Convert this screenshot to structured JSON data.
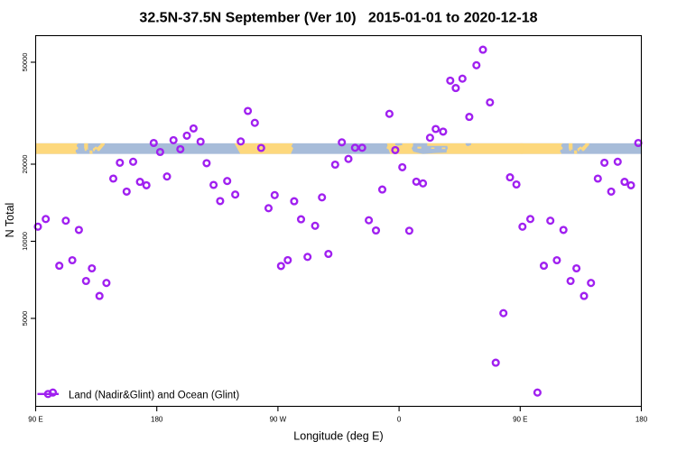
{
  "title": "32.5N-37.5N September (Ver 10)   2015-01-01 to 2020-12-18",
  "colors": {
    "marker": "#A020F0",
    "land": "#FDD87D",
    "ocean": "#A7BCD9",
    "axis": "#000000",
    "background": "#FFFFFF",
    "text": "#000000"
  },
  "chart_data": {
    "type": "scatter",
    "title": "32.5N-37.5N September (Ver 10)   2015-01-01 to 2020-12-18",
    "xlabel": "Longitude (deg E)",
    "ylabel": "N Total",
    "x_axis": {
      "range": [
        90,
        540
      ],
      "ticks": [
        90,
        180,
        270,
        360,
        450,
        540
      ],
      "tick_labels": [
        "90 E",
        "180",
        "90 W",
        "0",
        "90 E",
        "180"
      ],
      "note": "longitude axis spans 450 deg; data with lon 90E-180E is plotted twice (at lon and lon+360)"
    },
    "y_axis": {
      "scale": "log",
      "range": [
        2268,
        63500
      ],
      "ticks": [
        5000,
        10000,
        20000,
        50000
      ],
      "tick_labels": [
        "5000",
        "10000",
        "20000",
        "50000"
      ]
    },
    "grid": false,
    "legend": {
      "label": "Land (Nadir&Glint) and Ocean (Glint)",
      "position": "bottomleft",
      "marker": "open-circle-on-line"
    },
    "series": [
      {
        "name": "N Total per longitude",
        "marker": "open-circle",
        "color": "#A020F0",
        "points": [
          {
            "lon": 97.5,
            "n": 12217
          },
          {
            "lon": 91.7,
            "n": 11404
          },
          {
            "lon": 112.4,
            "n": 12030
          },
          {
            "lon": 122.1,
            "n": 11076
          },
          {
            "lon": 107.6,
            "n": 8027
          },
          {
            "lon": 117.2,
            "n": 8434
          },
          {
            "lon": 131.8,
            "n": 7841
          },
          {
            "lon": 127.4,
            "n": 7000
          },
          {
            "lon": 142.6,
            "n": 6876
          },
          {
            "lon": 137.4,
            "n": 6118
          },
          {
            "lon": 152.6,
            "n": 20262
          },
          {
            "lon": 162.4,
            "n": 20444
          },
          {
            "lon": 147.7,
            "n": 17568
          },
          {
            "lon": 167.5,
            "n": 17062
          },
          {
            "lon": 172.3,
            "n": 16545
          },
          {
            "lon": 177.7,
            "n": 24199
          },
          {
            "lon": 157.6,
            "n": 15632
          },
          {
            "lon": 102.8,
            "n": 2567
          },
          {
            "lon": 207.3,
            "n": 27574
          },
          {
            "lon": 202.3,
            "n": 25842
          },
          {
            "lon": 212.5,
            "n": 24495
          },
          {
            "lon": 247.7,
            "n": 32270
          },
          {
            "lon": 252.8,
            "n": 28995
          },
          {
            "lon": 242.4,
            "n": 24535
          },
          {
            "lon": 257.5,
            "n": 23144
          },
          {
            "lon": 317.5,
            "n": 24337
          },
          {
            "lon": 327.3,
            "n": 23181
          },
          {
            "lon": 332.6,
            "n": 23181
          },
          {
            "lon": 322.4,
            "n": 20964
          },
          {
            "lon": 312.5,
            "n": 19920
          },
          {
            "lon": 352.8,
            "n": 31444
          },
          {
            "lon": 357.2,
            "n": 22698
          },
          {
            "lon": 383.0,
            "n": 25364
          },
          {
            "lon": 387.2,
            "n": 27440
          },
          {
            "lon": 392.7,
            "n": 26802
          },
          {
            "lon": 398.0,
            "n": 42375
          },
          {
            "lon": 402.1,
            "n": 39650
          },
          {
            "lon": 407.1,
            "n": 43138
          },
          {
            "lon": 417.5,
            "n": 48677
          },
          {
            "lon": 422.3,
            "n": 55961
          },
          {
            "lon": 412.2,
            "n": 30589
          },
          {
            "lon": 427.5,
            "n": 34854
          },
          {
            "lon": 217.0,
            "n": 20180
          },
          {
            "lon": 232.3,
            "n": 17187
          },
          {
            "lon": 222.2,
            "n": 16599
          },
          {
            "lon": 238.3,
            "n": 15219
          },
          {
            "lon": 227.1,
            "n": 14356
          },
          {
            "lon": 267.6,
            "n": 15145
          },
          {
            "lon": 263.0,
            "n": 13466
          },
          {
            "lon": 282.1,
            "n": 14333
          },
          {
            "lon": 302.7,
            "n": 14842
          },
          {
            "lon": 287.2,
            "n": 12188
          },
          {
            "lon": 297.6,
            "n": 11496
          },
          {
            "lon": 307.5,
            "n": 8927
          },
          {
            "lon": 292.0,
            "n": 8691
          },
          {
            "lon": 277.3,
            "n": 8441
          },
          {
            "lon": 272.3,
            "n": 8008
          },
          {
            "lon": 362.4,
            "n": 19457
          },
          {
            "lon": 372.8,
            "n": 17090
          },
          {
            "lon": 377.8,
            "n": 16829
          },
          {
            "lon": 347.5,
            "n": 15926
          },
          {
            "lon": 337.5,
            "n": 12079
          },
          {
            "lon": 342.8,
            "n": 11022
          },
          {
            "lon": 367.6,
            "n": 10995
          },
          {
            "lon": 187.6,
            "n": 17899
          },
          {
            "lon": 192.4,
            "n": 24815
          },
          {
            "lon": 182.5,
            "n": 22315
          },
          {
            "lon": 197.5,
            "n": 22883
          },
          {
            "lon": 442.4,
            "n": 17768
          },
          {
            "lon": 447.2,
            "n": 16666
          },
          {
            "lon": 437.5,
            "n": 5240
          },
          {
            "lon": 431.8,
            "n": 3358
          }
        ]
      }
    ],
    "map_band": {
      "description": "world land/ocean map strip for latitude band 32.5N-37.5N",
      "lat_range": [
        32.5,
        37.5
      ],
      "n_range": [
        21900,
        24160
      ],
      "land_color": "#FDD87D",
      "ocean_color": "#A7BCD9",
      "land_shapes": [
        {
          "name": "asia-china",
          "pts": [
            [
              90,
              37.5
            ],
            [
              122.0,
              37.5
            ],
            [
              120.5,
              36.8
            ],
            [
              120.6,
              36.0
            ],
            [
              121.4,
              35.6
            ],
            [
              121.5,
              34.8
            ],
            [
              119.8,
              34.4
            ],
            [
              119.8,
              33.3
            ],
            [
              120.7,
              32.9
            ],
            [
              120.5,
              32.5
            ],
            [
              90,
              32.5
            ]
          ]
        },
        {
          "name": "korea",
          "pts": [
            [
              126.0,
              37.5
            ],
            [
              128.9,
              37.5
            ],
            [
              128.9,
              35.2
            ],
            [
              127.8,
              34.9
            ],
            [
              127.8,
              34.0
            ],
            [
              126.5,
              34.0
            ],
            [
              126.3,
              35.0
            ],
            [
              126.0,
              35.2
            ]
          ]
        },
        {
          "name": "jeju",
          "pts": [
            [
              128.1,
              35.3
            ],
            [
              128.9,
              35.3
            ],
            [
              128.9,
              34.5
            ],
            [
              128.1,
              34.5
            ]
          ]
        },
        {
          "name": "kyushu",
          "pts": [
            [
              130.0,
              34.1
            ],
            [
              132.1,
              34.2
            ],
            [
              132.3,
              32.5
            ],
            [
              130.2,
              32.5
            ]
          ]
        },
        {
          "name": "shikoku",
          "pts": [
            [
              132.4,
              34.9
            ],
            [
              134.8,
              36.0
            ],
            [
              135.9,
              35.4
            ],
            [
              135.7,
              34.7
            ],
            [
              134.0,
              34.6
            ],
            [
              133.9,
              33.9
            ],
            [
              132.9,
              33.8
            ]
          ]
        },
        {
          "name": "honshu",
          "pts": [
            [
              135.3,
              35.2
            ],
            [
              138.3,
              37.0
            ],
            [
              138.4,
              37.5
            ],
            [
              141.2,
              37.5
            ],
            [
              141.3,
              36.8
            ],
            [
              137.3,
              33.9
            ],
            [
              136.0,
              33.9
            ]
          ]
        },
        {
          "name": "north-america",
          "pts": [
            [
              237.6,
              37.5
            ],
            [
              281.2,
              37.5
            ],
            [
              280.0,
              36.1
            ],
            [
              281.4,
              35.2
            ],
            [
              279.5,
              32.5
            ],
            [
              242.1,
              32.5
            ]
          ]
        },
        {
          "name": "eurasia-africa",
          "pts": [
            [
              350.8,
              37.5
            ],
            [
              452.0,
              37.5
            ],
            [
              452.0,
              32.5
            ],
            [
              353.4,
              32.5
            ],
            [
              352.2,
              34.6
            ],
            [
              350.6,
              35.2
            ],
            [
              351.5,
              36.5
            ]
          ]
        }
      ],
      "ocean_overlays": [
        {
          "name": "alboran-sea",
          "pts": [
            [
              357.2,
              37.5
            ],
            [
              362.2,
              37.5
            ],
            [
              362.4,
              36.6
            ],
            [
              359.0,
              36.3
            ],
            [
              357.1,
              36.6
            ]
          ]
        },
        {
          "name": "mediterranean",
          "pts": [
            [
              370.4,
              37.5
            ],
            [
              380.9,
              37.5
            ],
            [
              380.9,
              36.2
            ],
            [
              395.7,
              36.2
            ],
            [
              396.2,
              35.2
            ],
            [
              395.3,
              33.9
            ],
            [
              395.3,
              33.2
            ],
            [
              387.0,
              33.0
            ],
            [
              381.2,
              32.7
            ],
            [
              377.8,
              32.6
            ],
            [
              375.0,
              32.9
            ],
            [
              370.6,
              33.6
            ],
            [
              369.3,
              35.1
            ],
            [
              370.4,
              36.3
            ]
          ]
        },
        {
          "name": "caspian-sea",
          "pts": [
            [
              409.3,
              37.5
            ],
            [
              413.6,
              37.5
            ],
            [
              413.4,
              36.6
            ],
            [
              411.0,
              36.1
            ],
            [
              409.6,
              36.6
            ]
          ]
        }
      ],
      "island_overlays": [
        {
          "name": "sicily",
          "pts": [
            [
              373.6,
              35.9
            ],
            [
              376.5,
              35.9
            ],
            [
              376.5,
              35.0
            ],
            [
              373.6,
              35.0
            ]
          ]
        },
        {
          "name": "crete",
          "pts": [
            [
              383.8,
              35.5
            ],
            [
              386.3,
              35.5
            ],
            [
              386.3,
              34.9
            ],
            [
              383.8,
              34.9
            ]
          ]
        },
        {
          "name": "cyprus",
          "pts": [
            [
              391.8,
              35.5
            ],
            [
              394.4,
              35.5
            ],
            [
              394.4,
              34.8
            ],
            [
              391.8,
              34.8
            ]
          ]
        }
      ]
    }
  }
}
